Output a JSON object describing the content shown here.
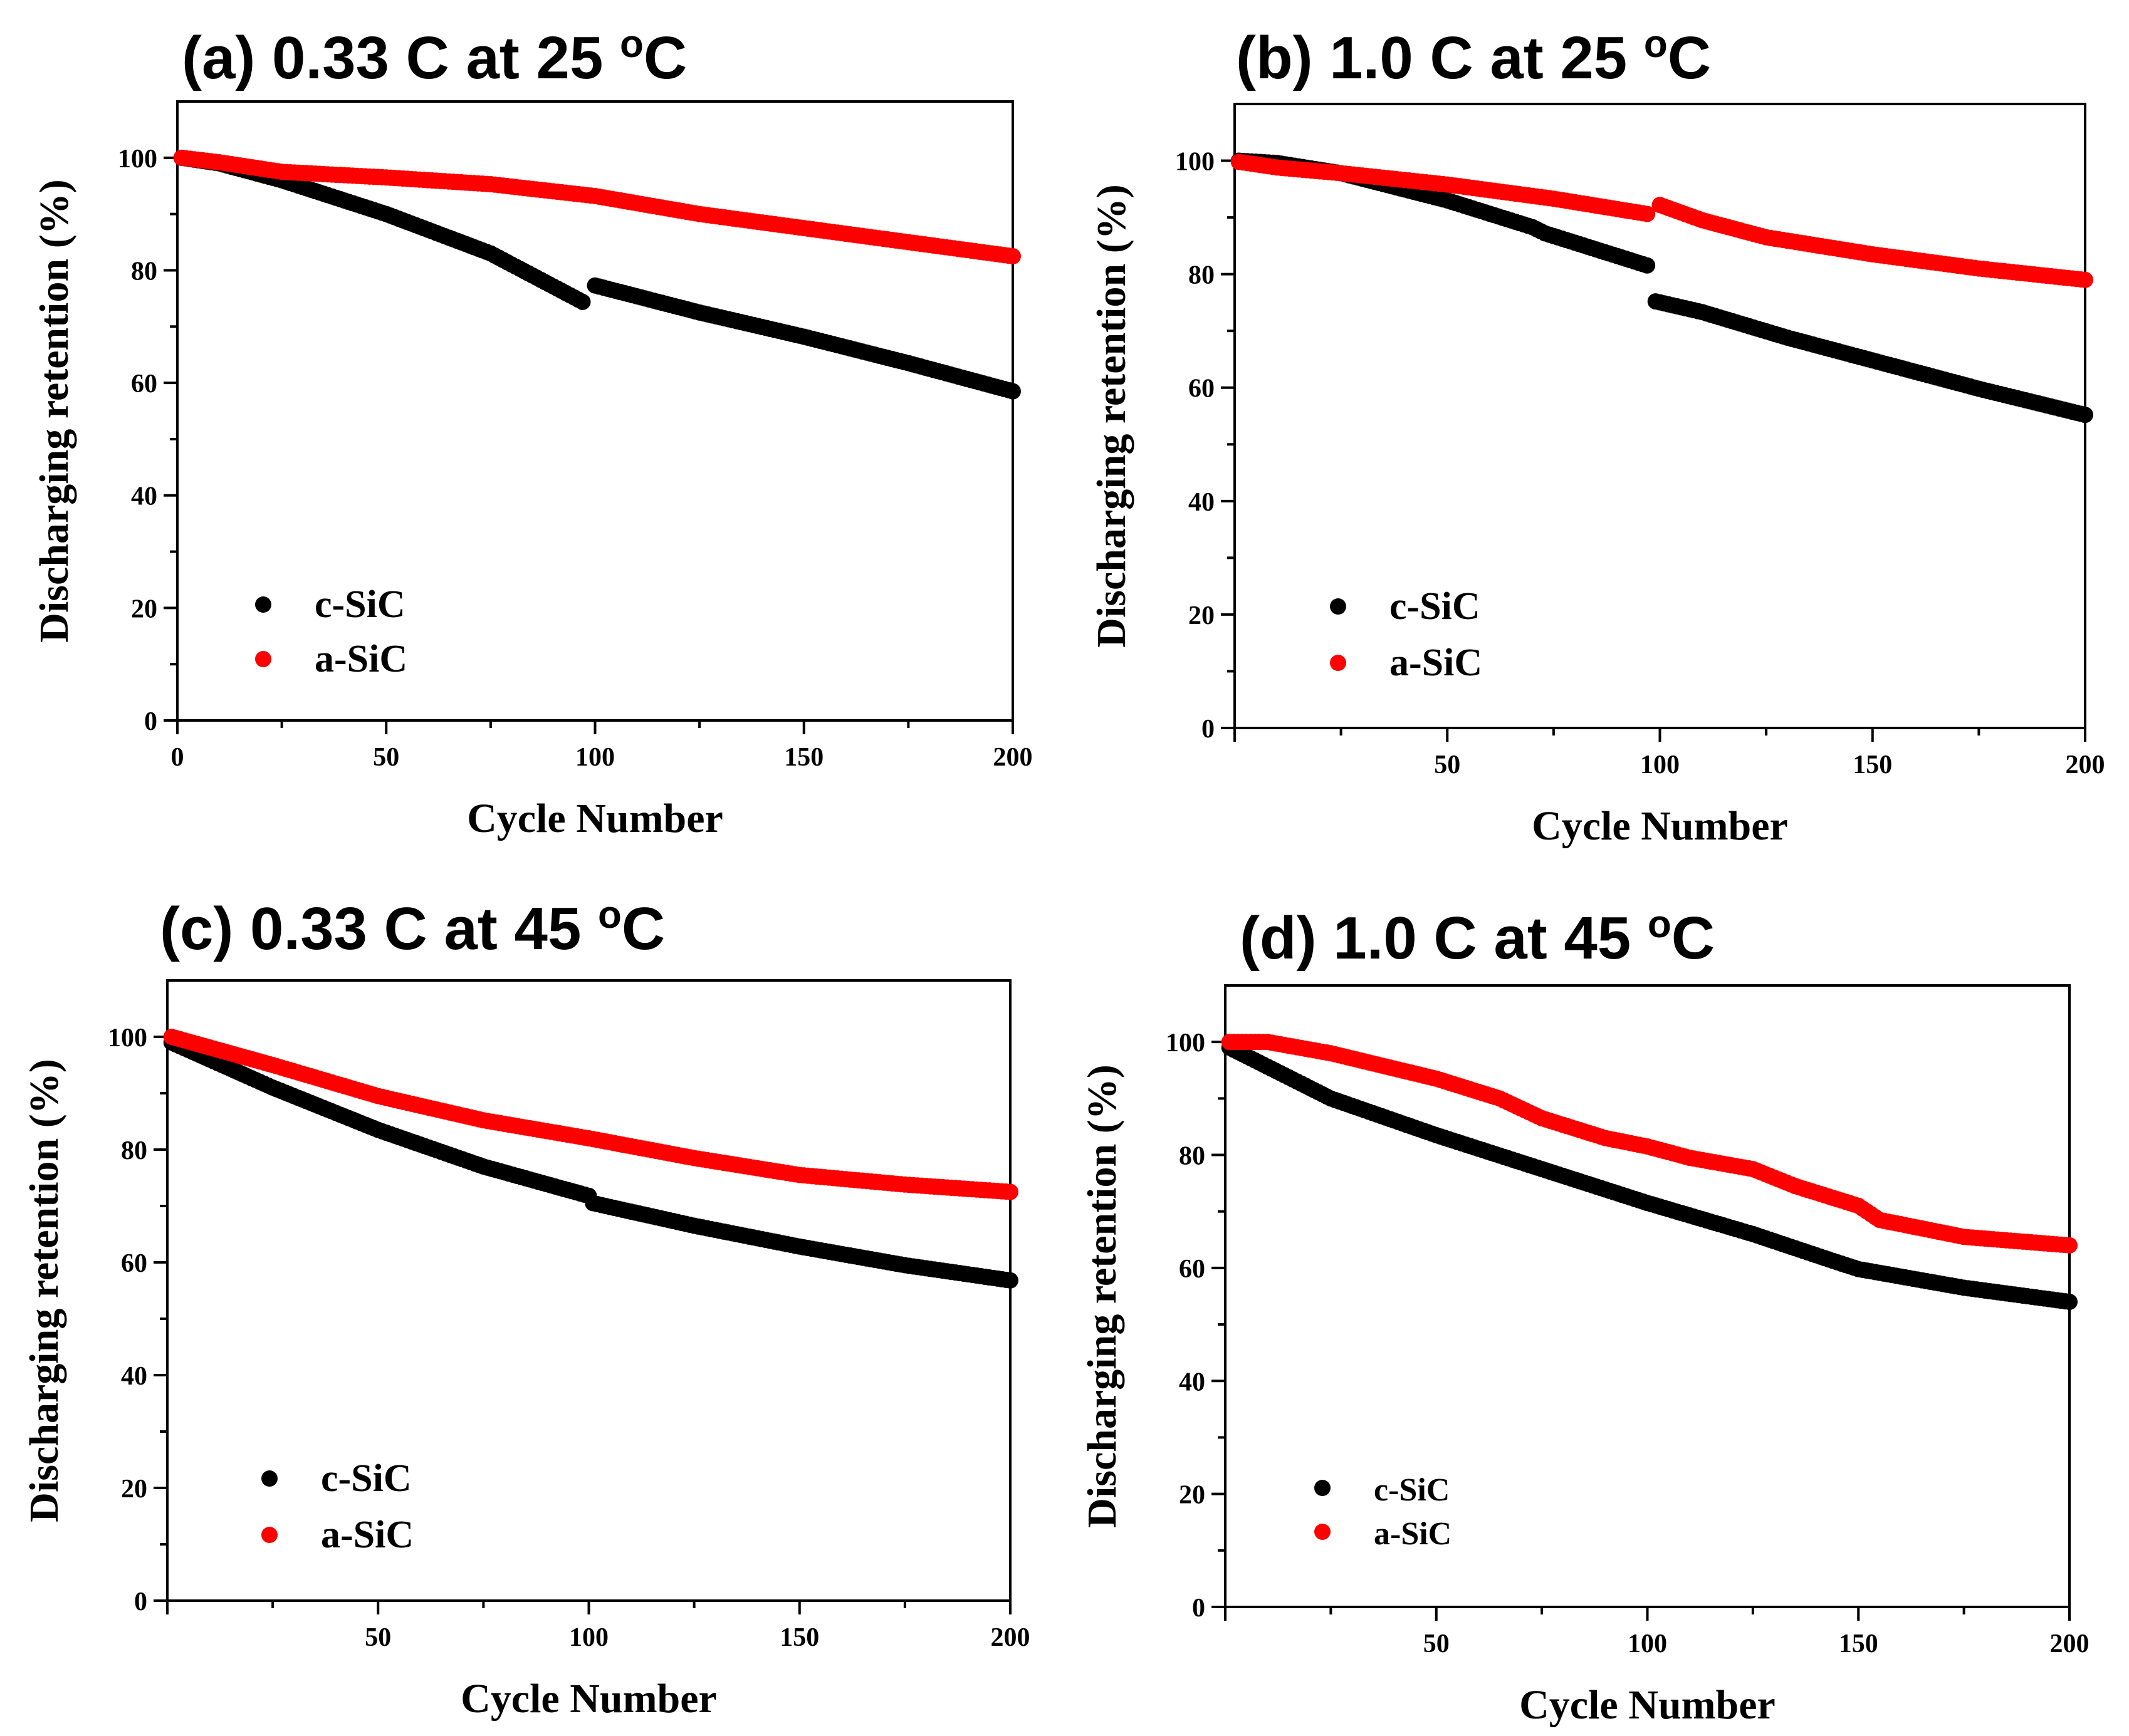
{
  "colors": {
    "c_sic": "#000000",
    "a_sic": "#ff0000"
  },
  "chart_data": [
    {
      "panel": "a",
      "type": "scatter",
      "title": "(a) 0.33 C at 25 ",
      "title_sup": "o",
      "title_tail": "C",
      "xlabel": "Cycle Number",
      "ylabel": "Discharging retention (%)",
      "xlim": [
        0,
        200
      ],
      "ylim": [
        0,
        110
      ],
      "xticks": [
        "0",
        "50",
        "100",
        "150",
        "200"
      ],
      "xtick_values": [
        0,
        50,
        100,
        150,
        200
      ],
      "yticks": [
        "0",
        "20",
        "40",
        "60",
        "80",
        "100"
      ],
      "ytick_values": [
        0,
        20,
        40,
        60,
        80,
        100
      ],
      "legend": [
        "c-SiC",
        "a-SiC"
      ],
      "series": [
        {
          "name": "c-SiC",
          "color": "#000000",
          "points": [
            [
              1,
              100
            ],
            [
              10,
              99
            ],
            [
              25,
              96
            ],
            [
              50,
              90
            ],
            [
              75,
              83
            ],
            [
              98,
              74
            ],
            [
              100,
              77.3
            ],
            [
              125,
              72.5
            ],
            [
              150,
              68.2
            ],
            [
              175,
              63.5
            ],
            [
              200,
              58.5
            ]
          ]
        },
        {
          "name": "a-SiC",
          "color": "#ff0000",
          "points": [
            [
              1,
              100
            ],
            [
              10,
              99.2
            ],
            [
              25,
              97.5
            ],
            [
              50,
              96.5
            ],
            [
              75,
              95.3
            ],
            [
              100,
              93.2
            ],
            [
              125,
              90
            ],
            [
              150,
              87.5
            ],
            [
              175,
              85
            ],
            [
              200,
              82.5
            ]
          ]
        }
      ]
    },
    {
      "panel": "b",
      "type": "scatter",
      "title": "(b) 1.0 C at 25 ",
      "title_sup": "o",
      "title_tail": "C",
      "xlabel": "Cycle Number",
      "ylabel": "Discharging retention (%)",
      "xlim": [
        0,
        200
      ],
      "ylim": [
        0,
        110
      ],
      "xticks": [
        "50",
        "100",
        "150",
        "200"
      ],
      "xtick_values": [
        50,
        100,
        150,
        200
      ],
      "yticks": [
        "0",
        "20",
        "40",
        "60",
        "80",
        "100"
      ],
      "ytick_values": [
        0,
        20,
        40,
        60,
        80,
        100
      ],
      "legend": [
        "c-SiC",
        "a-SiC"
      ],
      "series": [
        {
          "name": "c-SiC",
          "color": "#000000",
          "points": [
            [
              1,
              100
            ],
            [
              10,
              99.6
            ],
            [
              25,
              97.8
            ],
            [
              50,
              93
            ],
            [
              70,
              88.3
            ],
            [
              73,
              87.2
            ],
            [
              98,
              81.3
            ],
            [
              99,
              75.2
            ],
            [
              110,
              73.3
            ],
            [
              130,
              68.8
            ],
            [
              150,
              64.8
            ],
            [
              175,
              59.8
            ],
            [
              200,
              55.2
            ]
          ]
        },
        {
          "name": "a-SiC",
          "color": "#ff0000",
          "points": [
            [
              1,
              99.8
            ],
            [
              10,
              98.8
            ],
            [
              25,
              97.8
            ],
            [
              50,
              95.8
            ],
            [
              75,
              93.3
            ],
            [
              98,
              90.5
            ],
            [
              100,
              92.2
            ],
            [
              110,
              89.5
            ],
            [
              125,
              86.5
            ],
            [
              150,
              83.5
            ],
            [
              175,
              81
            ],
            [
              200,
              79
            ]
          ]
        }
      ]
    },
    {
      "panel": "c",
      "type": "scatter",
      "title": "(c) 0.33 C at 45 ",
      "title_sup": "o",
      "title_tail": "C",
      "xlabel": "Cycle Number",
      "ylabel": "Discharging retention (%)",
      "xlim": [
        0,
        200
      ],
      "ylim": [
        0,
        110
      ],
      "xticks": [
        "50",
        "100",
        "150",
        "200"
      ],
      "xtick_values": [
        50,
        100,
        150,
        200
      ],
      "yticks": [
        "0",
        "20",
        "40",
        "60",
        "80",
        "100"
      ],
      "ytick_values": [
        0,
        20,
        40,
        60,
        80,
        100
      ],
      "legend": [
        "c-SiC",
        "a-SiC"
      ],
      "series": [
        {
          "name": "c-SiC",
          "color": "#000000",
          "points": [
            [
              1,
              99
            ],
            [
              25,
              91
            ],
            [
              50,
              83.5
            ],
            [
              75,
              77
            ],
            [
              100,
              71.8
            ],
            [
              101,
              70.5
            ],
            [
              125,
              66.5
            ],
            [
              150,
              62.8
            ],
            [
              175,
              59.5
            ],
            [
              200,
              56.8
            ]
          ]
        },
        {
          "name": "a-SiC",
          "color": "#ff0000",
          "points": [
            [
              1,
              100
            ],
            [
              25,
              95
            ],
            [
              50,
              89.5
            ],
            [
              75,
              85.2
            ],
            [
              100,
              82
            ],
            [
              125,
              78.5
            ],
            [
              150,
              75.5
            ],
            [
              175,
              73.8
            ],
            [
              200,
              72.5
            ]
          ]
        }
      ]
    },
    {
      "panel": "d",
      "type": "scatter",
      "title": "(d) 1.0 C at 45 ",
      "title_sup": "o",
      "title_tail": "C",
      "xlabel": "Cycle Number",
      "ylabel": "Discharging retention (%)",
      "xlim": [
        0,
        200
      ],
      "ylim": [
        0,
        110
      ],
      "xticks": [
        "50",
        "100",
        "150",
        "200"
      ],
      "xtick_values": [
        50,
        100,
        150,
        200
      ],
      "yticks": [
        "0",
        "20",
        "40",
        "60",
        "80",
        "100"
      ],
      "ytick_values": [
        0,
        20,
        40,
        60,
        80,
        100
      ],
      "legend": [
        "c-SiC",
        "a-SiC"
      ],
      "series": [
        {
          "name": "c-SiC",
          "color": "#000000",
          "points": [
            [
              1,
              99
            ],
            [
              25,
              90
            ],
            [
              50,
              83.5
            ],
            [
              75,
              77.5
            ],
            [
              100,
              71.5
            ],
            [
              125,
              66
            ],
            [
              145,
              61
            ],
            [
              150,
              59.8
            ],
            [
              175,
              56.5
            ],
            [
              200,
              54
            ]
          ]
        },
        {
          "name": "a-SiC",
          "color": "#ff0000",
          "points": [
            [
              1,
              100
            ],
            [
              10,
              100
            ],
            [
              25,
              98
            ],
            [
              50,
              93.5
            ],
            [
              65,
              90
            ],
            [
              75,
              86.5
            ],
            [
              90,
              83
            ],
            [
              100,
              81.5
            ],
            [
              110,
              79.5
            ],
            [
              125,
              77.5
            ],
            [
              135,
              74.5
            ],
            [
              150,
              71
            ],
            [
              155,
              68.5
            ],
            [
              175,
              65.5
            ],
            [
              200,
              64
            ]
          ]
        }
      ]
    }
  ]
}
